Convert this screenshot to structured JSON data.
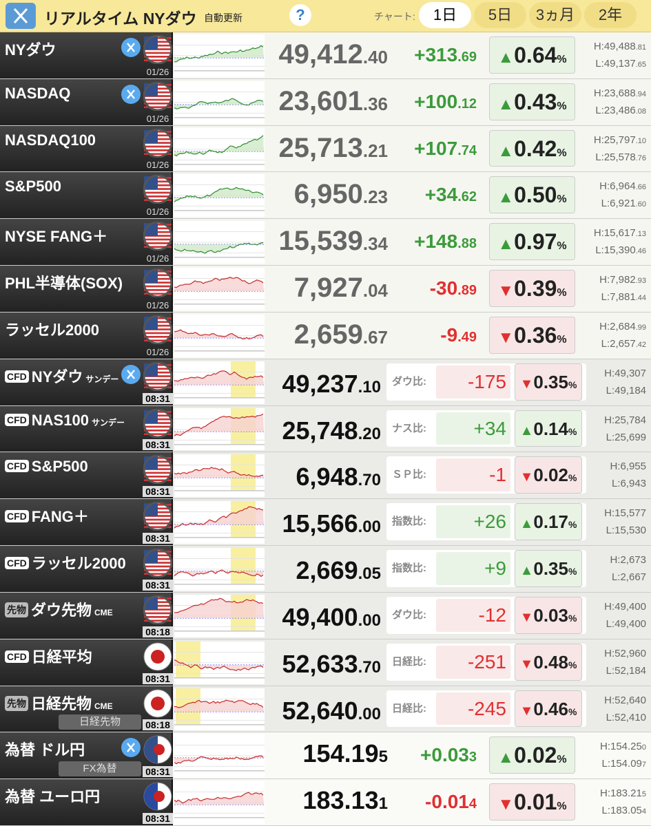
{
  "header": {
    "title": "リアルタイム NYダウ",
    "subtitle": "自動更新",
    "help": "?",
    "chart_label": "チャート:",
    "ranges": [
      "1日",
      "5日",
      "3ヵ月",
      "2年"
    ],
    "active_range": 0
  },
  "percent_sign": "%",
  "rows": [
    {
      "kind": "index",
      "name": "NYダウ",
      "x_icon": true,
      "flag": "us",
      "time": "01/26",
      "price": "49,412",
      "price_dec": ".40",
      "change": "+313",
      "change_dec": ".69",
      "arrow": "▲",
      "pct": "0.64",
      "high": "H:49,488",
      "high_dec": ".81",
      "low": "L:49,137",
      "low_dec": ".65",
      "dir": "up"
    },
    {
      "kind": "index",
      "name": "NASDAQ",
      "x_icon": true,
      "flag": "us",
      "time": "01/26",
      "price": "23,601",
      "price_dec": ".36",
      "change": "+100",
      "change_dec": ".12",
      "arrow": "▲",
      "pct": "0.43",
      "high": "H:23,688",
      "high_dec": ".94",
      "low": "L:23,486",
      "low_dec": ".08",
      "dir": "up"
    },
    {
      "kind": "index",
      "name": "NASDAQ100",
      "flag": "us",
      "time": "01/26",
      "price": "25,713",
      "price_dec": ".21",
      "change": "+107",
      "change_dec": ".74",
      "arrow": "▲",
      "pct": "0.42",
      "high": "H:25,797",
      "high_dec": ".10",
      "low": "L:25,578",
      "low_dec": ".76",
      "dir": "up"
    },
    {
      "kind": "index",
      "name": "S&P500",
      "flag": "us",
      "time": "01/26",
      "price": "6,950",
      "price_dec": ".23",
      "change": "+34",
      "change_dec": ".62",
      "arrow": "▲",
      "pct": "0.50",
      "high": "H:6,964",
      "high_dec": ".66",
      "low": "L:6,921",
      "low_dec": ".60",
      "dir": "up"
    },
    {
      "kind": "index",
      "name": "NYSE FANG＋",
      "flag": "us",
      "time": "01/26",
      "price": "15,539",
      "price_dec": ".34",
      "change": "+148",
      "change_dec": ".88",
      "arrow": "▲",
      "pct": "0.97",
      "high": "H:15,617",
      "high_dec": ".13",
      "low": "L:15,390",
      "low_dec": ".46",
      "dir": "up"
    },
    {
      "kind": "index",
      "name": "PHL半導体(SOX)",
      "flag": "us",
      "time": "01/26",
      "price": "7,927",
      "price_dec": ".04",
      "change": "-30",
      "change_dec": ".89",
      "arrow": "▼",
      "pct": "0.39",
      "high": "H:7,982",
      "high_dec": ".93",
      "low": "L:7,881",
      "low_dec": ".44",
      "dir": "down"
    },
    {
      "kind": "index",
      "name": "ラッセル2000",
      "flag": "us",
      "time": "01/26",
      "price": "2,659",
      "price_dec": ".67",
      "change": "-9",
      "change_dec": ".49",
      "arrow": "▼",
      "pct": "0.36",
      "high": "H:2,684",
      "high_dec": ".99",
      "low": "L:2,657",
      "low_dec": ".42",
      "dir": "down"
    },
    {
      "kind": "cfd",
      "prefix": "CFD",
      "name": "NYダウ",
      "suffix": "サンデー",
      "x_icon": true,
      "flag": "us",
      "time": "08:31",
      "price": "49,237",
      "price_dec": ".10",
      "compare": "ダウ比:",
      "diff": "-175",
      "arrow": "▼",
      "pct": "0.35",
      "high": "H:49,307",
      "low": "L:49,184",
      "dir": "down"
    },
    {
      "kind": "cfd",
      "prefix": "CFD",
      "name": "NAS100",
      "suffix": "サンデー",
      "flag": "us",
      "time": "08:31",
      "price": "25,748",
      "price_dec": ".20",
      "compare": "ナス比:",
      "diff": "+34",
      "arrow": "▲",
      "pct": "0.14",
      "high": "H:25,784",
      "low": "L:25,699",
      "dir": "up"
    },
    {
      "kind": "cfd",
      "prefix": "CFD",
      "name": "S&P500",
      "flag": "us",
      "time": "08:31",
      "price": "6,948",
      "price_dec": ".70",
      "compare": "ＳＰ比:",
      "diff": "-1",
      "arrow": "▼",
      "pct": "0.02",
      "high": "H:6,955",
      "low": "L:6,943",
      "dir": "down"
    },
    {
      "kind": "cfd",
      "prefix": "CFD",
      "name": "FANG＋",
      "flag": "us",
      "time": "08:31",
      "price": "15,566",
      "price_dec": ".00",
      "compare": "指数比:",
      "diff": "+26",
      "arrow": "▲",
      "pct": "0.17",
      "high": "H:15,577",
      "low": "L:15,530",
      "dir": "up"
    },
    {
      "kind": "cfd",
      "prefix": "CFD",
      "name": "ラッセル2000",
      "flag": "us",
      "time": "08:31",
      "price": "2,669",
      "price_dec": ".05",
      "compare": "指数比:",
      "diff": "+9",
      "arrow": "▲",
      "pct": "0.35",
      "high": "H:2,673",
      "low": "L:2,667",
      "dir": "up"
    },
    {
      "kind": "cfd",
      "prefix": "先物",
      "name": "ダウ先物",
      "suffix": "CME",
      "flag": "us",
      "time": "08:18",
      "price": "49,400",
      "price_dec": ".00",
      "compare": "ダウ比:",
      "diff": "-12",
      "arrow": "▼",
      "pct": "0.03",
      "high": "H:49,400",
      "low": "L:49,400",
      "dir": "down"
    },
    {
      "kind": "cfd",
      "prefix": "CFD",
      "name": "日経平均",
      "flag": "jp",
      "time": "08:31",
      "price": "52,633",
      "price_dec": ".70",
      "compare": "日経比:",
      "diff": "-251",
      "arrow": "▼",
      "pct": "0.48",
      "high": "H:52,960",
      "low": "L:52,184",
      "dir": "down"
    },
    {
      "kind": "cfd",
      "prefix": "先物",
      "name": "日経先物",
      "suffix": "CME",
      "sublabel": "日経先物",
      "flag": "jp",
      "time": "08:18",
      "price": "52,640",
      "price_dec": ".00",
      "compare": "日経比:",
      "diff": "-245",
      "arrow": "▼",
      "pct": "0.46",
      "high": "H:52,640",
      "low": "L:52,410",
      "dir": "down"
    },
    {
      "kind": "fx",
      "name": "為替 ドル円",
      "x_icon": true,
      "sublabel": "FX為替",
      "flag": "usjp",
      "time": "08:31",
      "price": "154.19",
      "price_dec": "5",
      "change": "+0.03",
      "change_dec": "3",
      "arrow": "▲",
      "pct": "0.02",
      "high": "H:154.25",
      "high_dec": "0",
      "low": "L:154.09",
      "low_dec": "7",
      "dir": "up"
    },
    {
      "kind": "fx",
      "name": "為替 ユーロ円",
      "flag": "eujp",
      "time": "08:31",
      "price": "183.13",
      "price_dec": "1",
      "change": "-0.01",
      "change_dec": "4",
      "arrow": "▼",
      "pct": "0.01",
      "high": "H:183.21",
      "high_dec": "5",
      "low": "L:183.05",
      "low_dec": "4",
      "dir": "down"
    }
  ]
}
